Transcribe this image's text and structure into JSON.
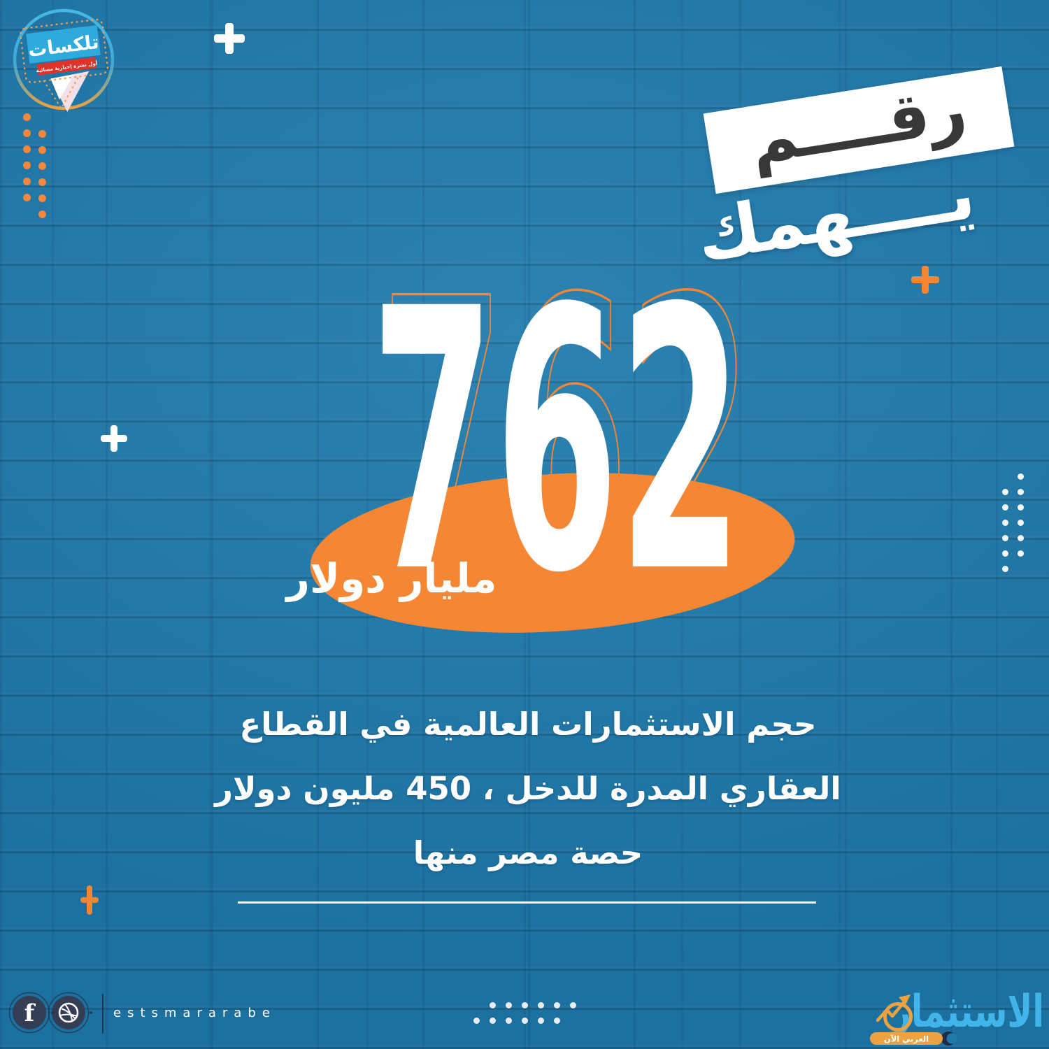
{
  "colors": {
    "background": "#1f7aab",
    "accent_orange": "#f58634",
    "brand_sky_blue": "#41b5e9",
    "icon_navy": "#333d54",
    "badge_red": "#e1322a",
    "badge_sign_blue": "#2faadd",
    "headline_ink": "#383838"
  },
  "badge": {
    "title": "تلكسات",
    "subtitle": "أول نشرة إخبارية مسائية"
  },
  "headline": {
    "word1": "رقــــم",
    "word2": "يــــهمك"
  },
  "stat": {
    "number": "762",
    "unit": "مليار دولار"
  },
  "description": {
    "line1": "حجم الاستثمارات العالمية في القطاع",
    "line2": "العقاري المدرة للدخل ، 450 مليون دولار",
    "line3": "حصة مصر منها"
  },
  "footer": {
    "handle": "estsmararabe",
    "social": [
      "facebook-icon",
      "dribbble-icon"
    ],
    "brand": {
      "name": "الاستثمار",
      "tagline": "العربي الآن"
    }
  }
}
